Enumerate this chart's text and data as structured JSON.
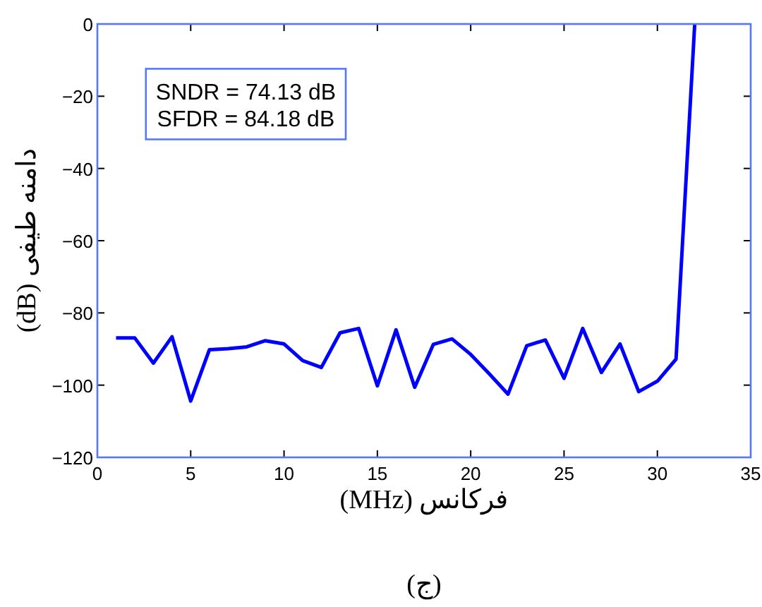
{
  "chart_data": {
    "type": "line",
    "xlabel": "فرکانس (MHz)",
    "ylabel": "دامنه طیفی (dB)",
    "x": [
      1,
      2,
      3,
      4,
      5,
      6,
      7,
      8,
      9,
      10,
      11,
      12,
      13,
      14,
      15,
      16,
      17,
      18,
      19,
      20,
      21,
      22,
      23,
      24,
      25,
      26,
      27,
      28,
      29,
      30,
      31,
      32
    ],
    "series": [
      {
        "color": "#0000ff",
        "values": [
          -86.9,
          -86.9,
          -93.9,
          -86.6,
          -104.4,
          -90.2,
          -89.9,
          -89.4,
          -87.7,
          -88.6,
          -93.2,
          -95.1,
          -85.5,
          -84.3,
          -100.2,
          -84.7,
          -100.6,
          -88.7,
          -87.2,
          -91.5,
          -96.9,
          -102.5,
          -89.1,
          -87.5,
          -98.1,
          -84.3,
          -96.5,
          -88.6,
          -101.8,
          -98.9,
          -92.8,
          0
        ]
      }
    ],
    "xlim": [
      0,
      35
    ],
    "xticks": [
      0,
      5,
      10,
      15,
      20,
      25,
      30,
      35
    ],
    "ylim": [
      -120,
      0
    ],
    "yticks": [
      {
        "value": -120,
        "label": "−120"
      },
      {
        "value": -100,
        "label": "−100"
      },
      {
        "value": -80,
        "label": "−80"
      },
      {
        "value": -60,
        "label": "−60"
      },
      {
        "value": -40,
        "label": "−40"
      },
      {
        "value": -20,
        "label": "−20"
      },
      0
    ],
    "grid": false,
    "marker": "none",
    "line_style": "solid",
    "annotations": [
      "SNDR = 74.13 dB",
      "SFDR = 84.18 dB",
      "(ج)"
    ]
  }
}
